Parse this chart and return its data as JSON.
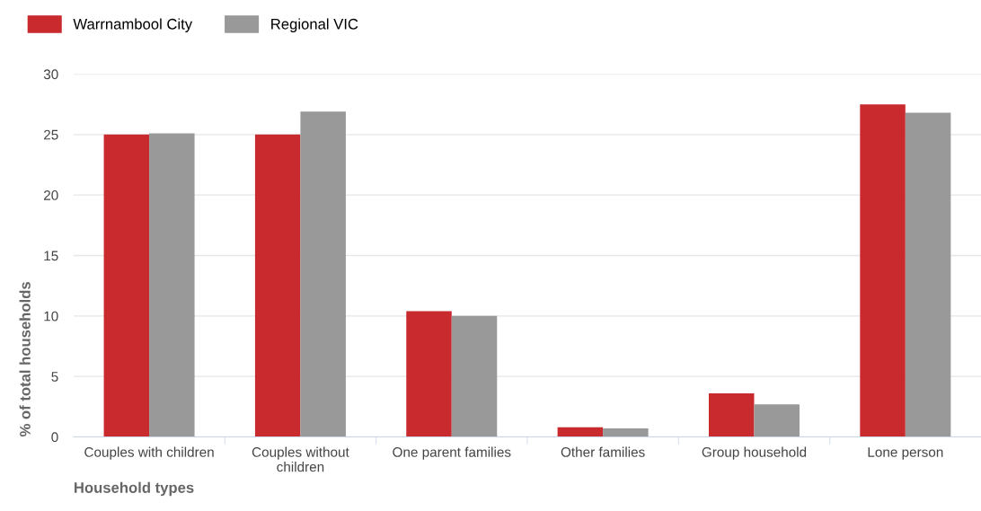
{
  "chart_data": {
    "type": "bar",
    "xlabel": "Household types",
    "ylabel": "% of total households",
    "categories": [
      "Couples with children",
      "Couples without\nchildren",
      "One parent families",
      "Other families",
      "Group household",
      "Lone person"
    ],
    "series": [
      {
        "name": "Warrnambool City",
        "color": "#c92a2e",
        "values": [
          25.0,
          25.0,
          10.4,
          0.8,
          3.6,
          27.5
        ]
      },
      {
        "name": "Regional VIC",
        "color": "#999999",
        "values": [
          25.1,
          26.9,
          10.0,
          0.7,
          2.7,
          26.8
        ]
      }
    ],
    "ylim": [
      0,
      30
    ],
    "yticks": [
      0,
      5,
      10,
      15,
      20,
      25,
      30
    ],
    "grid": "y",
    "legend": "top left"
  }
}
